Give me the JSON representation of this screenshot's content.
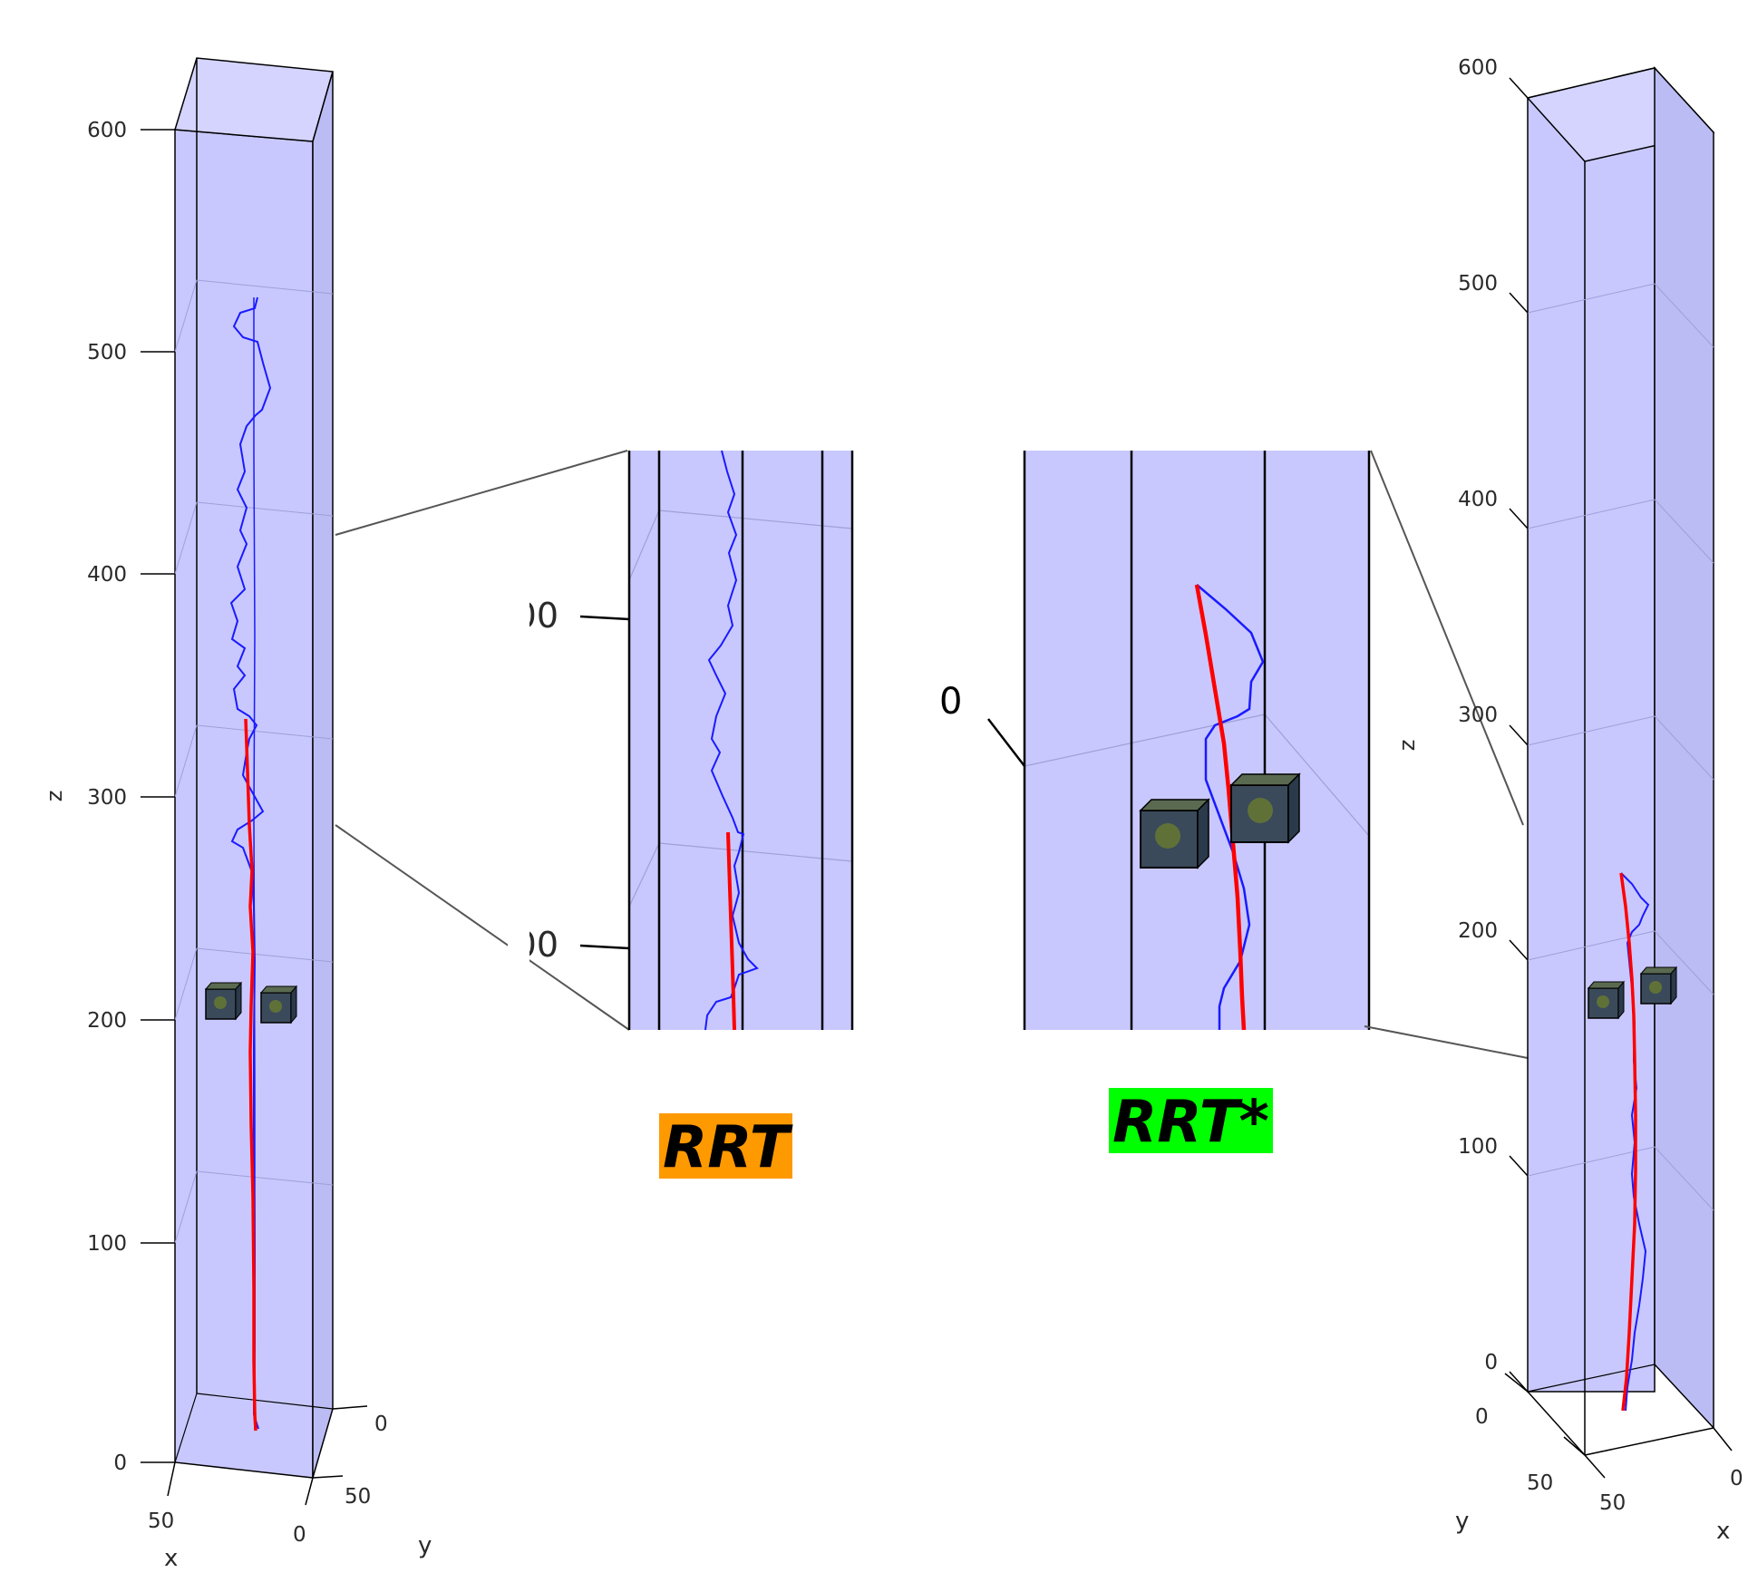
{
  "labels": {
    "rrt": "RRT",
    "rrt_star": "RRT*"
  },
  "colors": {
    "rrt_badge": "#ff9900",
    "rrt_star_badge": "#00ff00",
    "box_fill": "#c8c8ff",
    "path_blue": "#1a1aff",
    "path_red": "#ff0000",
    "obstacle": "#3a4a5a"
  },
  "left_plot": {
    "z_label": "z",
    "x_label": "x",
    "y_label": "y",
    "z_ticks": [
      "0",
      "100",
      "200",
      "300",
      "400",
      "500",
      "600"
    ],
    "x_ticks": [
      "50",
      "0"
    ],
    "y_ticks": [
      "0",
      "50"
    ]
  },
  "right_plot": {
    "z_label": "z",
    "x_label": "x",
    "y_label": "y",
    "z_ticks": [
      "0",
      "100",
      "200",
      "300",
      "400",
      "500",
      "600"
    ],
    "x_ticks": [
      "0",
      "50"
    ],
    "y_ticks": [
      "0",
      "50"
    ]
  },
  "zoom_rrt": {
    "tick_labels": [
      "00",
      "00"
    ]
  },
  "zoom_rrt_star": {
    "tick_labels": [
      "0"
    ]
  }
}
